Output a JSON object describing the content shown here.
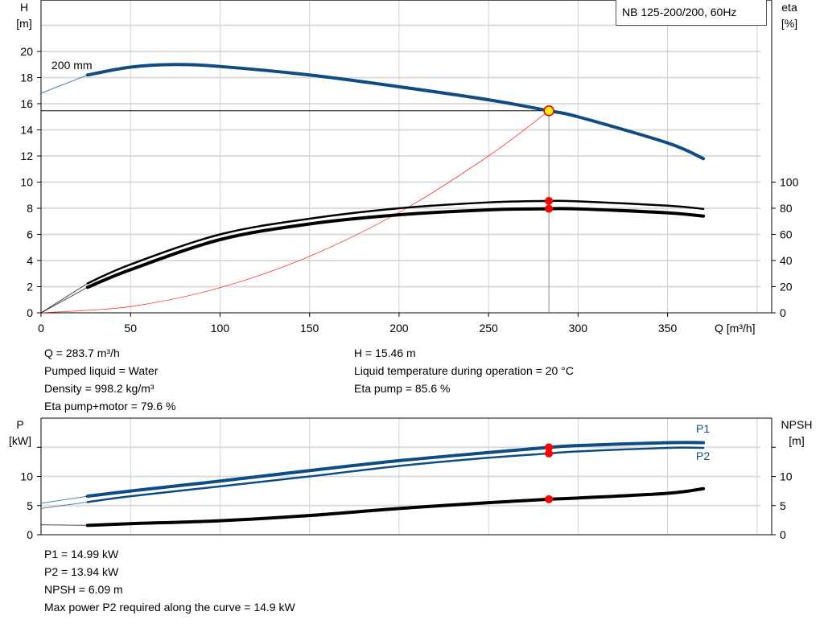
{
  "chart_data": [
    {
      "type": "line",
      "title": "NB 125-200/200, 60Hz",
      "xlabel": "Q [m³/h]",
      "ylabel": "H\n[m]",
      "ylabel_unit_top": "H",
      "ylabel_unit_bottom": "[m]",
      "y2label_top": "eta",
      "y2label_bottom": "[%]",
      "xlim": [
        0,
        400
      ],
      "ylim": [
        0,
        24
      ],
      "y2lim": [
        0,
        148
      ],
      "x_ticks": [
        0,
        50,
        100,
        150,
        200,
        250,
        300,
        350
      ],
      "y_ticks": [
        0,
        2,
        4,
        6,
        8,
        10,
        12,
        14,
        16,
        18,
        20
      ],
      "y2_ticks": [
        0,
        20,
        40,
        60,
        80,
        100
      ],
      "grid": true,
      "curve_label": "200 mm",
      "operating_point": {
        "Q": 283.7,
        "H": 15.46,
        "eta_pump": 85.6,
        "eta_pump_motor": 79.6
      },
      "series": [
        {
          "key": "head",
          "axis": "left",
          "color": "#0f4c81",
          "x": [
            0,
            26,
            50,
            75,
            100,
            150,
            200,
            250,
            283.7,
            300,
            350,
            370
          ],
          "y": [
            16.8,
            18.2,
            18.8,
            19.0,
            18.85,
            18.2,
            17.3,
            16.3,
            15.46,
            15.0,
            13.0,
            11.8
          ]
        },
        {
          "key": "eta_pump",
          "axis": "right",
          "color": "#000000",
          "x": [
            0,
            26,
            50,
            100,
            150,
            200,
            250,
            283.7,
            300,
            350,
            370
          ],
          "y": [
            0,
            22.5,
            37,
            60,
            72,
            80,
            84.5,
            85.6,
            85.3,
            82,
            79.5
          ]
        },
        {
          "key": "eta_pump_motor",
          "axis": "right",
          "color": "#000000",
          "x": [
            0,
            26,
            50,
            100,
            150,
            200,
            250,
            283.7,
            300,
            350,
            370
          ],
          "y": [
            0,
            19.5,
            33,
            56,
            68,
            75,
            78.8,
            79.6,
            79.5,
            76.5,
            74
          ]
        },
        {
          "key": "system_curve",
          "axis": "left",
          "color": "#ff3333",
          "x": [
            0,
            50,
            100,
            150,
            200,
            250,
            283.7
          ],
          "y": [
            0,
            0.48,
            1.92,
            4.32,
            7.68,
            12.0,
            15.46
          ]
        }
      ]
    },
    {
      "type": "line",
      "ylabel_top": "P",
      "ylabel_bottom": "[kW]",
      "y2label_top": "NPSH",
      "y2label_bottom": "[m]",
      "xlim": [
        0,
        400
      ],
      "ylim": [
        0,
        20
      ],
      "y_ticks": [
        0,
        5,
        10
      ],
      "y2_ticks": [
        0,
        5,
        10
      ],
      "grid": true,
      "operating_point": {
        "Q": 283.7,
        "P1": 14.99,
        "P2": 13.94,
        "NPSH": 6.09
      },
      "series": [
        {
          "key": "P1",
          "name": "P1",
          "axis": "left",
          "color": "#0f4c81",
          "x": [
            0,
            26,
            50,
            100,
            150,
            200,
            250,
            283.7,
            300,
            350,
            370
          ],
          "y": [
            5.4,
            6.6,
            7.5,
            9.2,
            11.0,
            12.7,
            14.1,
            14.99,
            15.3,
            15.8,
            15.8
          ]
        },
        {
          "key": "P2",
          "name": "P2",
          "axis": "left",
          "color": "#0f4c81",
          "x": [
            0,
            26,
            50,
            100,
            150,
            200,
            250,
            283.7,
            300,
            350,
            370
          ],
          "y": [
            4.5,
            5.6,
            6.6,
            8.3,
            10.0,
            11.8,
            13.2,
            13.94,
            14.3,
            14.9,
            14.9
          ]
        },
        {
          "key": "NPSH",
          "axis": "right",
          "color": "#000000",
          "x": [
            0,
            26,
            50,
            100,
            150,
            200,
            250,
            283.7,
            300,
            350,
            370
          ],
          "y": [
            1.7,
            1.6,
            1.9,
            2.4,
            3.3,
            4.5,
            5.5,
            6.09,
            6.3,
            7.1,
            7.9
          ]
        }
      ]
    }
  ],
  "info_top": {
    "q": "Q = 283.7 m³/h",
    "liquid": "Pumped liquid = Water",
    "density": "Density = 998.2 kg/m³",
    "eta_pm": "Eta pump+motor = 79.6 %",
    "h": "H = 15.46 m",
    "temp": "Liquid temperature during operation = 20 °C",
    "eta_p": "Eta pump = 85.6 %"
  },
  "info_bottom": {
    "p1": "P1 = 14.99 kW",
    "p2": "P2 = 13.94 kW",
    "npsh": "NPSH = 6.09 m",
    "max_p2": "Max power P2 required along the curve = 14.9 kW"
  }
}
